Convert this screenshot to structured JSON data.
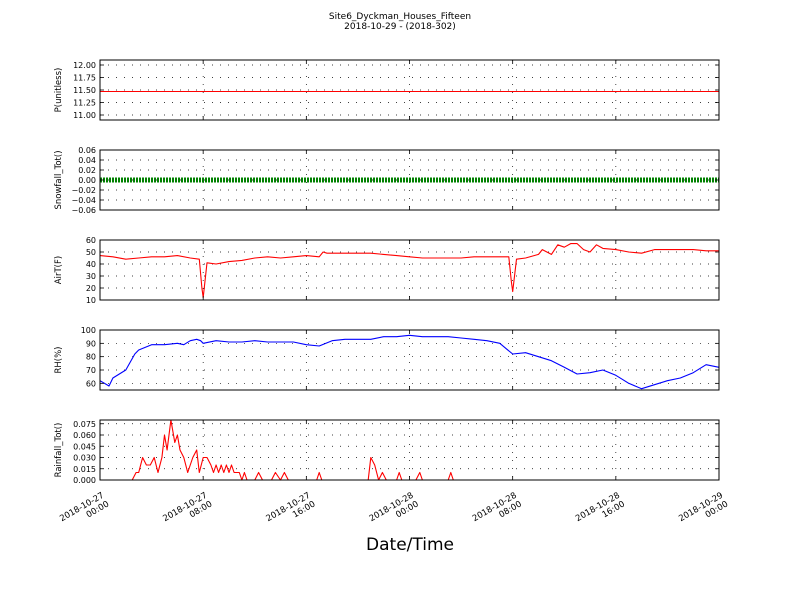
{
  "figure": {
    "title_line1": "Site6_Dyckman_Houses_Fifteen",
    "title_line2": "2018-10-29 - (2018-302)",
    "xlabel": "Date/Time",
    "x_ticks": [
      [
        "2018-10-27",
        "00:00"
      ],
      [
        "2018-10-27",
        "08:00"
      ],
      [
        "2018-10-27",
        "16:00"
      ],
      [
        "2018-10-28",
        "00:00"
      ],
      [
        "2018-10-28",
        "08:00"
      ],
      [
        "2018-10-28",
        "16:00"
      ],
      [
        "2018-10-29",
        "00:00"
      ]
    ]
  },
  "chart_data": [
    {
      "type": "line",
      "ylabel": "P(unitless)",
      "ylim": [
        10.9,
        12.1
      ],
      "yticks": [
        "12.00",
        "11.75",
        "11.50",
        "11.25",
        "11.00"
      ],
      "grid": true,
      "series": [
        {
          "color": "#ff0000",
          "x": [
            0,
            48
          ],
          "y": [
            11.47,
            11.47
          ]
        }
      ]
    },
    {
      "type": "scatter",
      "ylabel": "Snowfall_Tot()",
      "ylim": [
        -0.06,
        0.06
      ],
      "yticks": [
        "0.06",
        "0.04",
        "0.02",
        "0.00",
        "−0.02",
        "−0.04",
        "−0.06"
      ],
      "grid": true,
      "series": [
        {
          "color": "#008000",
          "x": [
            0,
            48
          ],
          "y": [
            0,
            0
          ]
        }
      ]
    },
    {
      "type": "line",
      "ylabel": "AirT(F)",
      "ylim": [
        10,
        60
      ],
      "yticks": [
        "60",
        "50",
        "40",
        "30",
        "20",
        "10"
      ],
      "grid": true,
      "series": [
        {
          "color": "#ff0000",
          "x": [
            0,
            1,
            2,
            3,
            4,
            5,
            6,
            7,
            7.7,
            7.9,
            8.0,
            8.3,
            9,
            10,
            11,
            12,
            13,
            14,
            15,
            16,
            17,
            17.3,
            17.6,
            18,
            19,
            20,
            21,
            22,
            23,
            24,
            25,
            26,
            27,
            28,
            29,
            30,
            31,
            31.7,
            31.9,
            32.0,
            32.3,
            33,
            34,
            34.3,
            35,
            35.5,
            36,
            36.5,
            37,
            37.5,
            38,
            38.5,
            39,
            40,
            41,
            42,
            43,
            44,
            45,
            46,
            47,
            48
          ],
          "y": [
            47,
            46,
            44,
            45,
            46,
            46,
            47,
            45,
            44,
            20,
            12,
            41,
            40,
            42,
            43,
            45,
            46,
            45,
            46,
            47,
            46,
            50,
            49,
            49,
            49,
            49,
            49,
            48,
            47,
            46,
            45,
            45,
            45,
            45,
            46,
            46,
            46,
            46,
            25,
            17,
            44,
            45,
            48,
            52,
            48,
            56,
            54,
            57,
            57,
            52,
            50,
            56,
            53,
            52,
            50,
            49,
            52,
            52,
            52,
            52,
            51,
            51
          ]
        }
      ]
    },
    {
      "type": "line",
      "ylabel": "RH(%)",
      "ylim": [
        55,
        100
      ],
      "yticks": [
        "100",
        "90",
        "80",
        "70",
        "60"
      ],
      "grid": true,
      "series": [
        {
          "color": "#0000ff",
          "x": [
            0,
            0.7,
            1,
            2,
            2.7,
            3,
            4,
            5,
            6,
            6.5,
            7,
            7.5,
            7.8,
            8,
            9,
            10,
            11,
            12,
            13,
            14,
            15,
            16,
            17,
            18,
            19,
            20,
            21,
            22,
            23,
            24,
            25,
            26,
            27,
            28,
            29,
            30,
            31,
            31.5,
            32,
            33,
            34,
            35,
            36,
            37,
            38,
            39,
            40,
            40.5,
            41,
            42,
            43,
            44,
            45,
            46,
            47,
            48
          ],
          "y": [
            62,
            58,
            64,
            70,
            82,
            85,
            89,
            89,
            90,
            89,
            92,
            93,
            92,
            90,
            92,
            91,
            91,
            92,
            91,
            91,
            91,
            89,
            88,
            92,
            93,
            93,
            93,
            95,
            95,
            96,
            95,
            95,
            95,
            94,
            93,
            92,
            90,
            86,
            82,
            83,
            80,
            77,
            72,
            67,
            68,
            70,
            66,
            63,
            60,
            56,
            59,
            62,
            64,
            68,
            74,
            72
          ]
        }
      ]
    },
    {
      "type": "line",
      "ylabel": "Rainfall_Tot()",
      "ylim": [
        0,
        0.08
      ],
      "yticks": [
        "0.075",
        "0.060",
        "0.045",
        "0.030",
        "0.015",
        "0.000"
      ],
      "grid": true,
      "series": [
        {
          "color": "#ff0000",
          "x": [
            0,
            2.5,
            2.8,
            3.0,
            3.3,
            3.6,
            3.9,
            4.2,
            4.5,
            4.8,
            5.0,
            5.2,
            5.5,
            5.8,
            6.0,
            6.2,
            6.5,
            6.8,
            7.2,
            7.5,
            7.7,
            8.0,
            8.3,
            8.6,
            8.8,
            9.0,
            9.2,
            9.4,
            9.6,
            9.8,
            10.0,
            10.2,
            10.4,
            10.6,
            10.8,
            11.0,
            11.2,
            11.4,
            11.7,
            12.0,
            12.3,
            12.6,
            13.0,
            13.3,
            13.6,
            14.0,
            14.3,
            14.6,
            15.0,
            16.8,
            17.0,
            17.2,
            20.8,
            21.0,
            21.3,
            21.6,
            21.9,
            22.2,
            23.0,
            23.2,
            23.4,
            24.5,
            24.8,
            25.0,
            25.3,
            27.0,
            27.2,
            27.4,
            48
          ],
          "y": [
            0,
            0,
            0.01,
            0.01,
            0.03,
            0.02,
            0.02,
            0.03,
            0.01,
            0.03,
            0.06,
            0.04,
            0.08,
            0.05,
            0.06,
            0.04,
            0.03,
            0.01,
            0.03,
            0.04,
            0.01,
            0.03,
            0.03,
            0.02,
            0.01,
            0.02,
            0.01,
            0.02,
            0.01,
            0.02,
            0.01,
            0.02,
            0.01,
            0.01,
            0.01,
            0.0,
            0.01,
            0.0,
            0.0,
            0.0,
            0.01,
            0.0,
            0.0,
            0.0,
            0.01,
            0.0,
            0.01,
            0.0,
            0.0,
            0.0,
            0.01,
            0.0,
            0.0,
            0.03,
            0.02,
            0.0,
            0.01,
            0.0,
            0.0,
            0.01,
            0.0,
            0.0,
            0.01,
            0.0,
            0.0,
            0.0,
            0.01,
            0.0,
            0.0
          ]
        }
      ]
    }
  ]
}
